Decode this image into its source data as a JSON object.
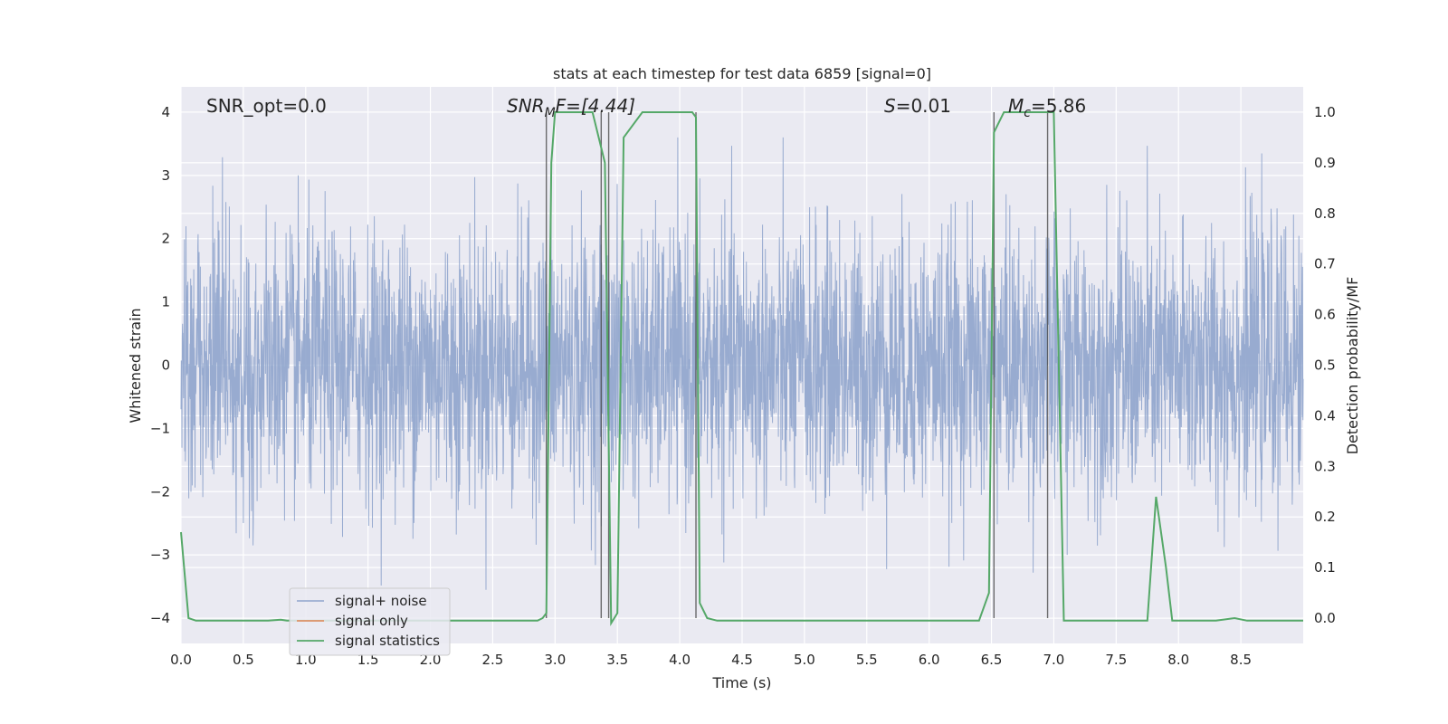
{
  "chart_data": {
    "type": "line",
    "title": "stats at each timestep for test data 6859 [signal=0]",
    "xlabel": "Time (s)",
    "ylabel": "Whitened strain",
    "y2label": "Detection probability/MF",
    "xlim": [
      0,
      9.0
    ],
    "ylim": [
      -4.4,
      4.4
    ],
    "y2lim": [
      -0.05,
      1.05
    ],
    "x_ticks": [
      "0.0",
      "0.5",
      "1.0",
      "1.5",
      "2.0",
      "2.5",
      "3.0",
      "3.5",
      "4.0",
      "4.5",
      "5.0",
      "5.5",
      "6.0",
      "6.5",
      "7.0",
      "7.5",
      "8.0",
      "8.5"
    ],
    "y_ticks": [
      "4",
      "3",
      "2",
      "1",
      "0",
      "−1",
      "−2",
      "−3",
      "−4"
    ],
    "y2_ticks": [
      "1.0",
      "0.9",
      "0.8",
      "0.7",
      "0.6",
      "0.5",
      "0.4",
      "0.3",
      "0.2",
      "0.1",
      "0.0"
    ],
    "grid": true,
    "legend_position": "lower-left",
    "annotations": {
      "snr_opt": "SNR_opt=0.0",
      "snr_mf_main": "SNR",
      "snr_mf_sub": "M",
      "snr_mf_rest": "F=[4.44]",
      "s_main": "S",
      "s_rest": "=0.01",
      "mc_main": "M",
      "mc_sub": "c",
      "mc_rest": "=5.86"
    },
    "series": [
      {
        "name": "signal+ noise",
        "color": "#8fa4cc",
        "description_values": "noise_band",
        "envelope_mean_amplitude": 1.7
      },
      {
        "name": "signal only",
        "color": "#dd8452",
        "values": []
      },
      {
        "name": "signal statistics",
        "color": "#55a868",
        "x": [
          0.0,
          0.06,
          0.12,
          0.5,
          0.7,
          0.8,
          0.85,
          1.0,
          1.5,
          2.0,
          2.5,
          2.86,
          2.9,
          2.93,
          2.97,
          3.0,
          3.3,
          3.4,
          3.45,
          3.5,
          3.55,
          3.7,
          4.0,
          4.1,
          4.13,
          4.16,
          4.22,
          4.3,
          4.5,
          5.0,
          5.5,
          6.0,
          6.4,
          6.48,
          6.52,
          6.6,
          7.0,
          7.08,
          7.5,
          7.75,
          7.82,
          7.9,
          7.95,
          8.0,
          8.3,
          8.45,
          8.55,
          9.0
        ],
        "y": [
          0.17,
          0.0,
          -0.005,
          -0.005,
          -0.005,
          -0.003,
          -0.005,
          -0.005,
          -0.005,
          -0.005,
          -0.005,
          -0.005,
          0.0,
          0.01,
          0.9,
          1.0,
          1.0,
          0.9,
          -0.01,
          0.01,
          0.95,
          1.0,
          1.0,
          1.0,
          0.99,
          0.03,
          0.0,
          -0.005,
          -0.005,
          -0.005,
          -0.005,
          -0.005,
          -0.005,
          0.05,
          0.96,
          1.0,
          1.0,
          -0.005,
          -0.005,
          -0.005,
          0.24,
          0.1,
          -0.005,
          -0.005,
          -0.005,
          0.0,
          -0.005,
          -0.005
        ]
      }
    ],
    "vertical_lines_x": [
      2.93,
      3.37,
      3.43,
      4.13,
      6.52,
      6.95
    ]
  }
}
